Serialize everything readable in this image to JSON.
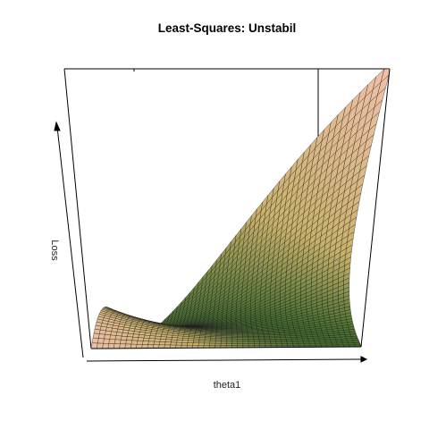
{
  "chart_data": {
    "type": "surface3d",
    "title": "Least-Squares: Unstabil",
    "xlabel": "theta1",
    "zlabel": "Loss",
    "box": true,
    "axes_ticks": false,
    "colors": {
      "low": "#3f6b2c",
      "mid": "#c9b26a",
      "high": "#f0c0a8",
      "grid_line": "#1a1a1a",
      "box_line": "#000000"
    },
    "surface_shape": "quadratic valley (loss surface), steep toward far-left and near-right corners"
  }
}
